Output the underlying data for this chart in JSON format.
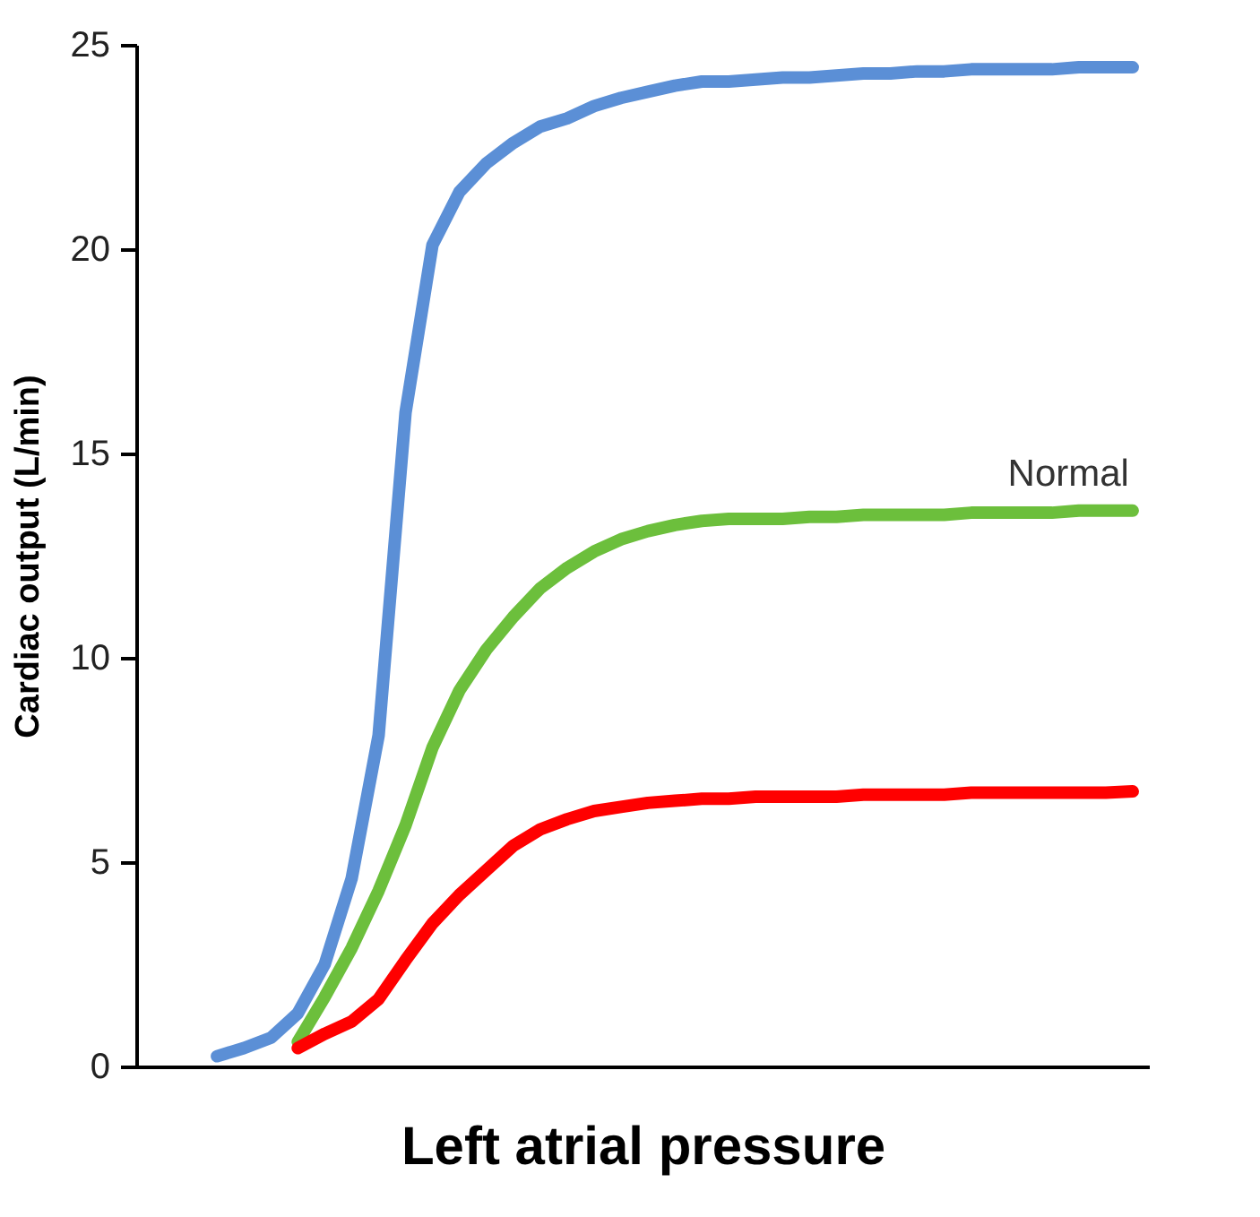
{
  "chart_data": {
    "type": "line",
    "xlabel": "Left atrial pressure",
    "ylabel": "Cardiac output (L/min)",
    "categories": [
      null,
      null,
      null,
      null,
      null,
      null,
      null,
      null,
      null,
      null,
      null,
      null,
      null,
      null,
      null,
      null,
      null,
      null,
      null,
      null,
      null,
      null,
      null,
      null,
      null,
      null,
      null,
      null,
      null,
      null,
      null,
      null,
      null,
      null,
      null
    ],
    "ylim": [
      0,
      25
    ],
    "yticks": [
      0,
      5,
      10,
      15,
      20,
      25
    ],
    "grid": false,
    "line_style": "solid",
    "marker": "none",
    "series": [
      {
        "color": "#5b8fd6",
        "values": [
          0.25,
          0.45,
          0.7,
          1.3,
          2.5,
          4.6,
          8.1,
          16.0,
          20.1,
          21.4,
          22.1,
          22.6,
          23.0,
          23.2,
          23.5,
          23.7,
          23.85,
          24.0,
          24.1,
          24.1,
          24.15,
          24.2,
          24.2,
          24.25,
          24.3,
          24.3,
          24.35,
          24.35,
          24.4,
          24.4,
          24.4,
          24.4,
          24.45,
          24.45,
          24.45
        ]
      },
      {
        "name": "Normal",
        "color": "#6cbf3c",
        "values": [
          null,
          null,
          null,
          0.6,
          1.7,
          2.9,
          4.3,
          5.9,
          7.8,
          9.2,
          10.2,
          11.0,
          11.7,
          12.2,
          12.6,
          12.9,
          13.1,
          13.25,
          13.35,
          13.4,
          13.4,
          13.4,
          13.45,
          13.45,
          13.5,
          13.5,
          13.5,
          13.5,
          13.55,
          13.55,
          13.55,
          13.55,
          13.6,
          13.6,
          13.6
        ]
      },
      {
        "color": "#ff0000",
        "values": [
          null,
          null,
          null,
          0.45,
          0.8,
          1.1,
          1.65,
          2.6,
          3.5,
          4.2,
          4.8,
          5.4,
          5.8,
          6.05,
          6.25,
          6.35,
          6.45,
          6.5,
          6.55,
          6.55,
          6.6,
          6.6,
          6.6,
          6.6,
          6.65,
          6.65,
          6.65,
          6.65,
          6.7,
          6.7,
          6.7,
          6.7,
          6.7,
          6.7,
          6.73
        ]
      }
    ]
  }
}
